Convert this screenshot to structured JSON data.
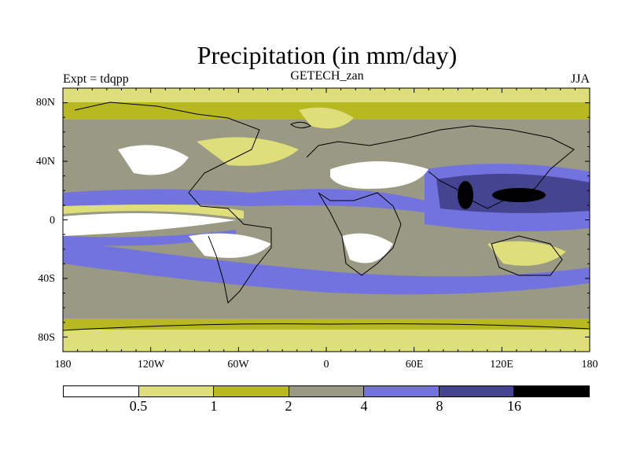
{
  "header": {
    "title": "Precipitation (in mm/day)",
    "subtitle": "GETECH_zan",
    "left_label": "Expt = tdqpp",
    "right_label": "JJA"
  },
  "map": {
    "y_ticks": [
      "80N",
      "40N",
      "0",
      "40S",
      "80S"
    ],
    "x_ticks": [
      "180",
      "120W",
      "60W",
      "0",
      "60E",
      "120E",
      "180"
    ]
  },
  "colorbar": {
    "colors": [
      "#ffffff",
      "#dede7a",
      "#b8b820",
      "#999984",
      "#7373df",
      "#444491",
      "#000000"
    ],
    "labels": [
      "0.5",
      "1",
      "2",
      "4",
      "8",
      "16"
    ]
  }
}
